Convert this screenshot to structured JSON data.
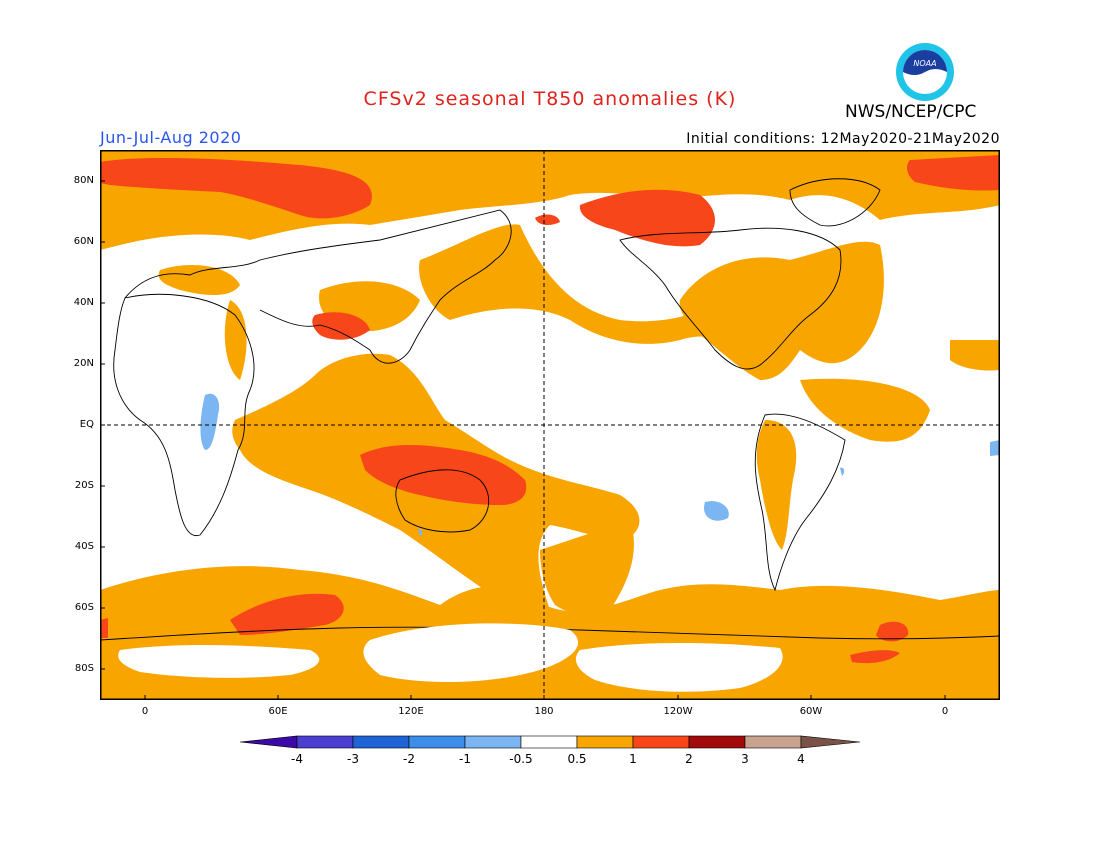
{
  "header": {
    "title": "CFSv2 seasonal T850 anomalies (K)",
    "period": "Jun-Jul-Aug 2020",
    "initial_conditions": "Initial conditions: 12May2020-21May2020",
    "agency": "NWS/NCEP/CPC",
    "logo_text": "NOAA"
  },
  "map": {
    "lat_labels": [
      "80N",
      "60N",
      "40N",
      "20N",
      "EQ",
      "20S",
      "40S",
      "60S",
      "80S"
    ],
    "lon_labels": [
      "0",
      "60E",
      "120E",
      "180",
      "120W",
      "60W",
      "0"
    ],
    "reference_lines": [
      "equator (dashed)",
      "180 meridian (dashed)"
    ]
  },
  "legend": {
    "tick_labels": [
      "-4",
      "-3",
      "-2",
      "-1",
      "-0.5",
      "0.5",
      "1",
      "2",
      "3",
      "4"
    ],
    "colors": [
      "#3b0aa8",
      "#4a3fd0",
      "#1f64d6",
      "#3c8eea",
      "#7bb5f2",
      "#ffffff",
      "#f9a500",
      "#f7461a",
      "#a10b0b",
      "#c9a38f",
      "#7a5348"
    ],
    "units": "K"
  }
}
